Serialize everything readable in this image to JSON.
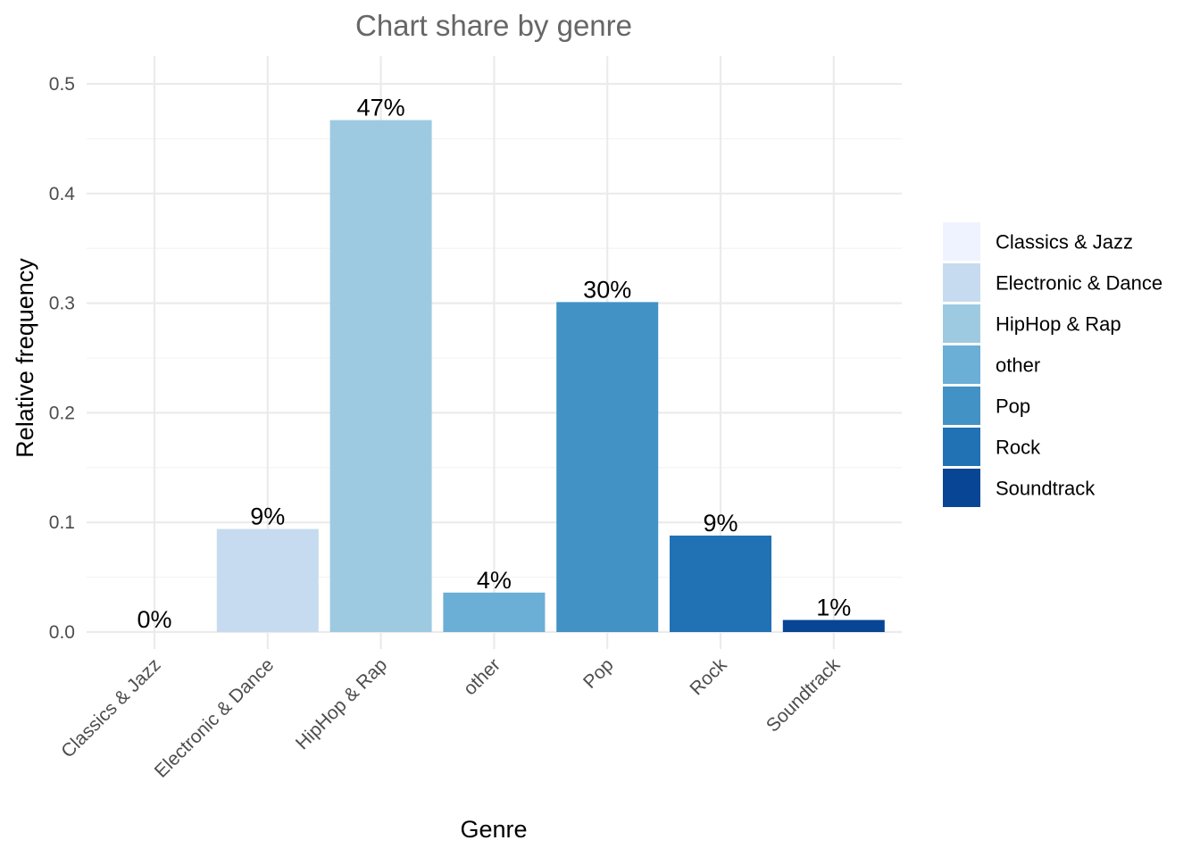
{
  "chart_data": {
    "type": "bar",
    "title": "Chart share by genre",
    "xlabel": "Genre",
    "ylabel": "Relative frequency",
    "categories": [
      "Classics & Jazz",
      "Electronic & Dance",
      "HipHop & Rap",
      "other",
      "Pop",
      "Rock",
      "Soundtrack"
    ],
    "values": [
      0.0,
      0.094,
      0.467,
      0.036,
      0.301,
      0.088,
      0.011
    ],
    "data_labels": [
      "0%",
      "9%",
      "47%",
      "4%",
      "30%",
      "9%",
      "1%"
    ],
    "colors": [
      "#eff3ff",
      "#c6dbef",
      "#9ecae1",
      "#6baed6",
      "#4292c6",
      "#2171b5",
      "#084594"
    ],
    "ylim": [
      0,
      0.5
    ],
    "yticks": [
      0.0,
      0.1,
      0.2,
      0.3,
      0.4,
      0.5
    ],
    "ytick_labels": [
      "0.0",
      "0.1",
      "0.2",
      "0.3",
      "0.4",
      "0.5"
    ],
    "grid": true,
    "legend": {
      "position": "right",
      "entries": [
        "Classics & Jazz",
        "Electronic & Dance",
        "HipHop & Rap",
        "other",
        "Pop",
        "Rock",
        "Soundtrack"
      ]
    }
  }
}
